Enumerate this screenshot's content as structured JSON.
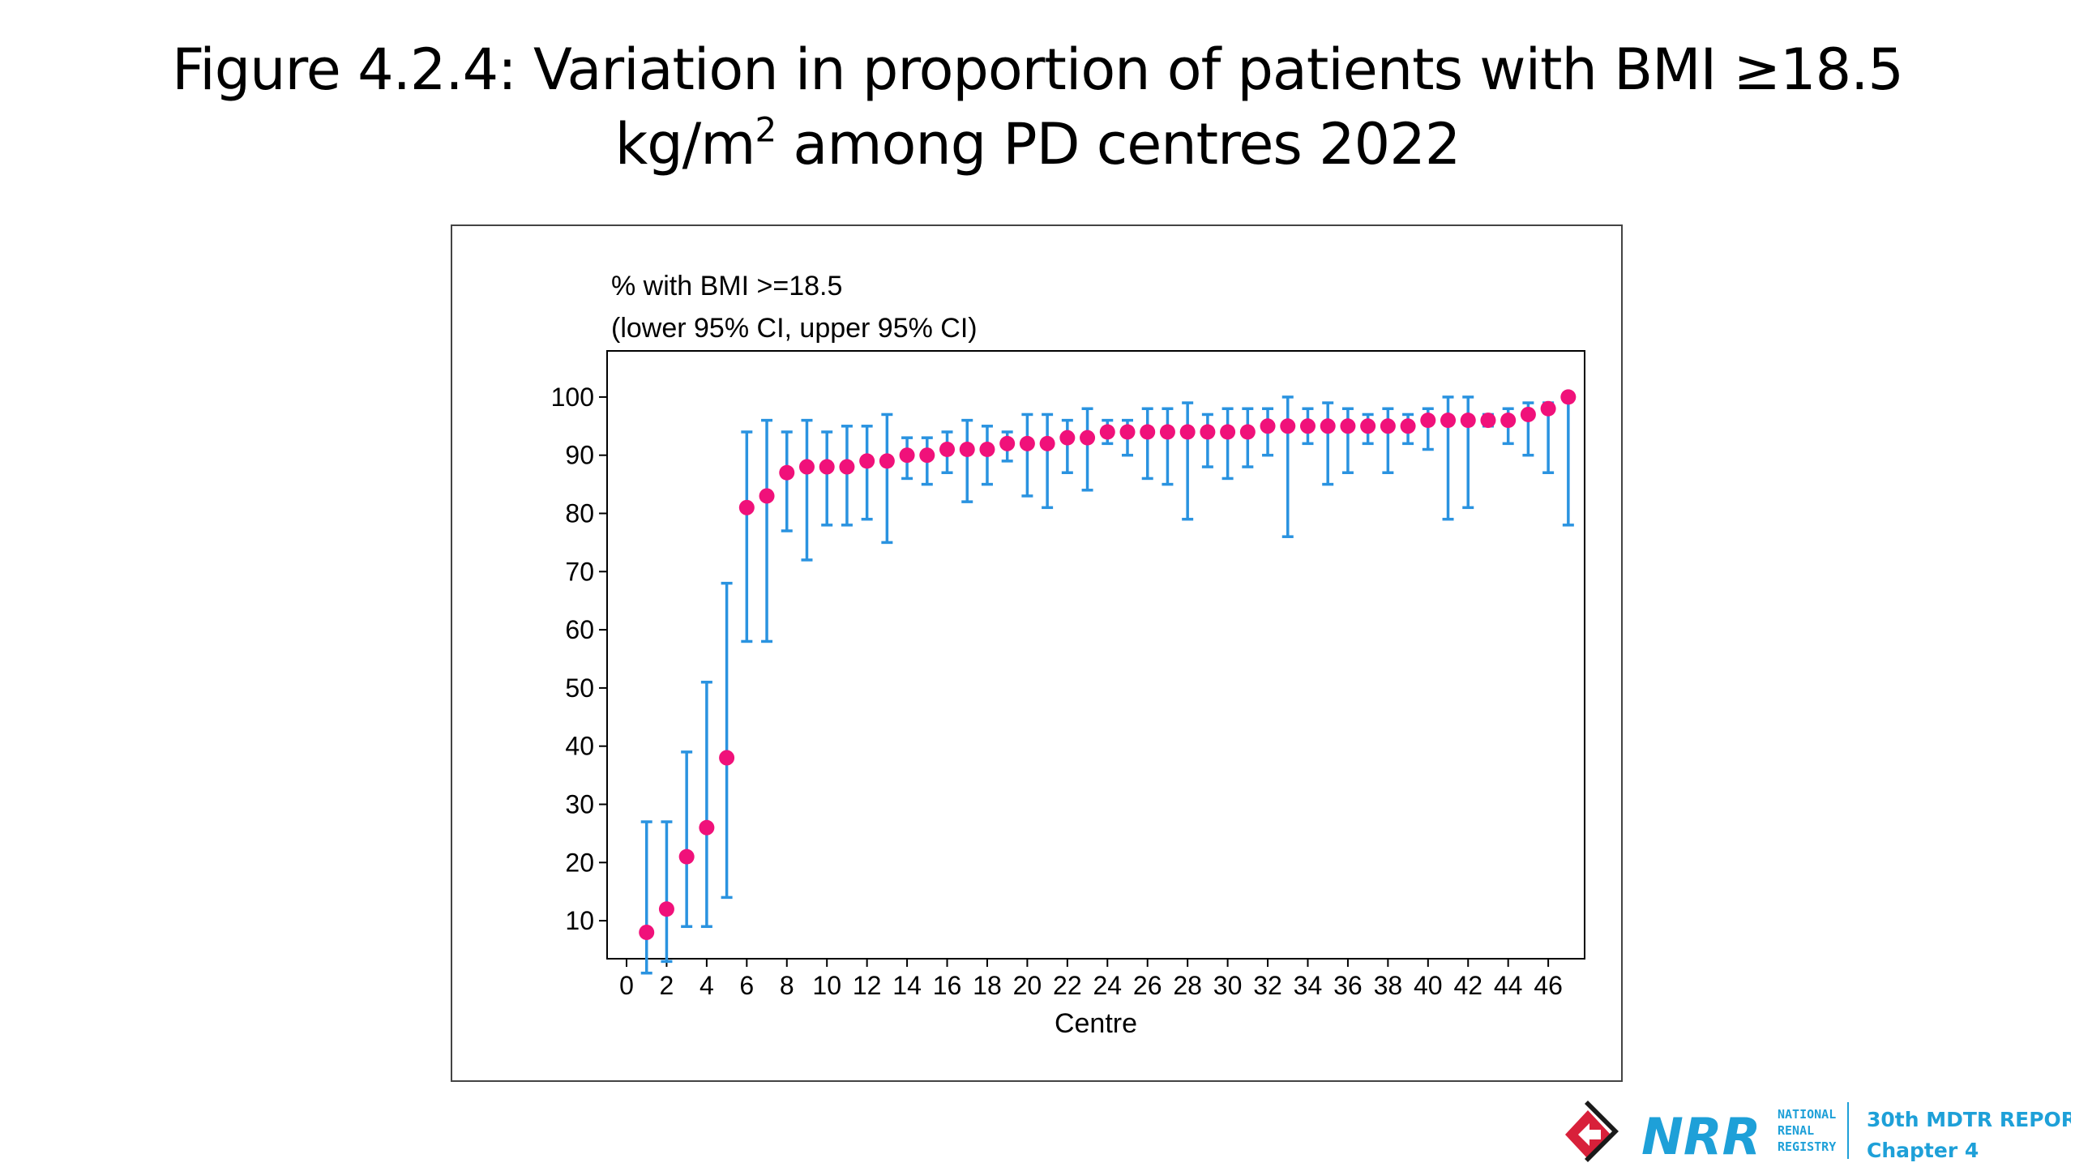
{
  "slide": {
    "title_part1": "Figure 4.2.4: Variation in proportion of patients with BMI ≥18.5",
    "title_part2_prefix": "kg/m",
    "title_sup": "2",
    "title_part2_suffix": " among PD centres 2022"
  },
  "footer": {
    "org_line1": "NATIONAL",
    "org_line2": "RENAL",
    "org_line3": "REGISTRY",
    "logo_text": "NRR",
    "report_line1": "30th MDTR REPORT 2022",
    "report_line2": "Chapter 4",
    "accent_color": "#1ea0d8",
    "logo_color": "#d8203a"
  },
  "chart_data": {
    "type": "scatter",
    "ylabel_line1": "% with BMI >=18.5",
    "ylabel_line2": "(lower 95% CI, upper 95% CI)",
    "xlabel": "Centre",
    "xlim": [
      0,
      47
    ],
    "ylim": [
      0,
      100
    ],
    "xticks": [
      0,
      2,
      4,
      6,
      8,
      10,
      12,
      14,
      16,
      18,
      20,
      22,
      24,
      26,
      28,
      30,
      32,
      34,
      36,
      38,
      40,
      42,
      44,
      46
    ],
    "yticks": [
      10,
      20,
      30,
      40,
      50,
      60,
      70,
      80,
      90,
      100
    ],
    "grid": false,
    "point_color": "#f0117a",
    "errorbar_color": "#2a93e0",
    "series": [
      {
        "x": [
          1,
          2,
          3,
          4,
          5,
          6,
          7,
          8,
          9,
          10,
          11,
          12,
          13,
          14,
          15,
          16,
          17,
          18,
          19,
          20,
          21,
          22,
          23,
          24,
          25,
          26,
          27,
          28,
          29,
          30,
          31,
          32,
          33,
          34,
          35,
          36,
          37,
          38,
          39,
          40,
          41,
          42,
          43,
          44,
          45,
          46,
          47
        ],
        "y": [
          8,
          12,
          21,
          26,
          38,
          81,
          83,
          87,
          88,
          88,
          88,
          89,
          89,
          90,
          90,
          91,
          91,
          91,
          92,
          92,
          92,
          93,
          93,
          94,
          94,
          94,
          94,
          94,
          94,
          94,
          94,
          95,
          95,
          95,
          95,
          95,
          95,
          95,
          95,
          96,
          96,
          96,
          96,
          96,
          97,
          98,
          100
        ],
        "lower": [
          1,
          3,
          9,
          9,
          14,
          58,
          58,
          77,
          72,
          78,
          78,
          79,
          75,
          86,
          85,
          87,
          82,
          85,
          89,
          83,
          81,
          87,
          84,
          92,
          90,
          86,
          85,
          79,
          88,
          86,
          88,
          90,
          76,
          92,
          85,
          87,
          92,
          87,
          92,
          91,
          79,
          81,
          95,
          92,
          90,
          87,
          78
        ],
        "upper": [
          27,
          27,
          39,
          51,
          68,
          94,
          96,
          94,
          96,
          94,
          95,
          95,
          97,
          93,
          93,
          94,
          96,
          95,
          94,
          97,
          97,
          96,
          98,
          96,
          96,
          98,
          98,
          99,
          97,
          98,
          98,
          98,
          100,
          98,
          99,
          98,
          97,
          98,
          97,
          98,
          100,
          100,
          97,
          98,
          99,
          99,
          100
        ]
      }
    ]
  }
}
